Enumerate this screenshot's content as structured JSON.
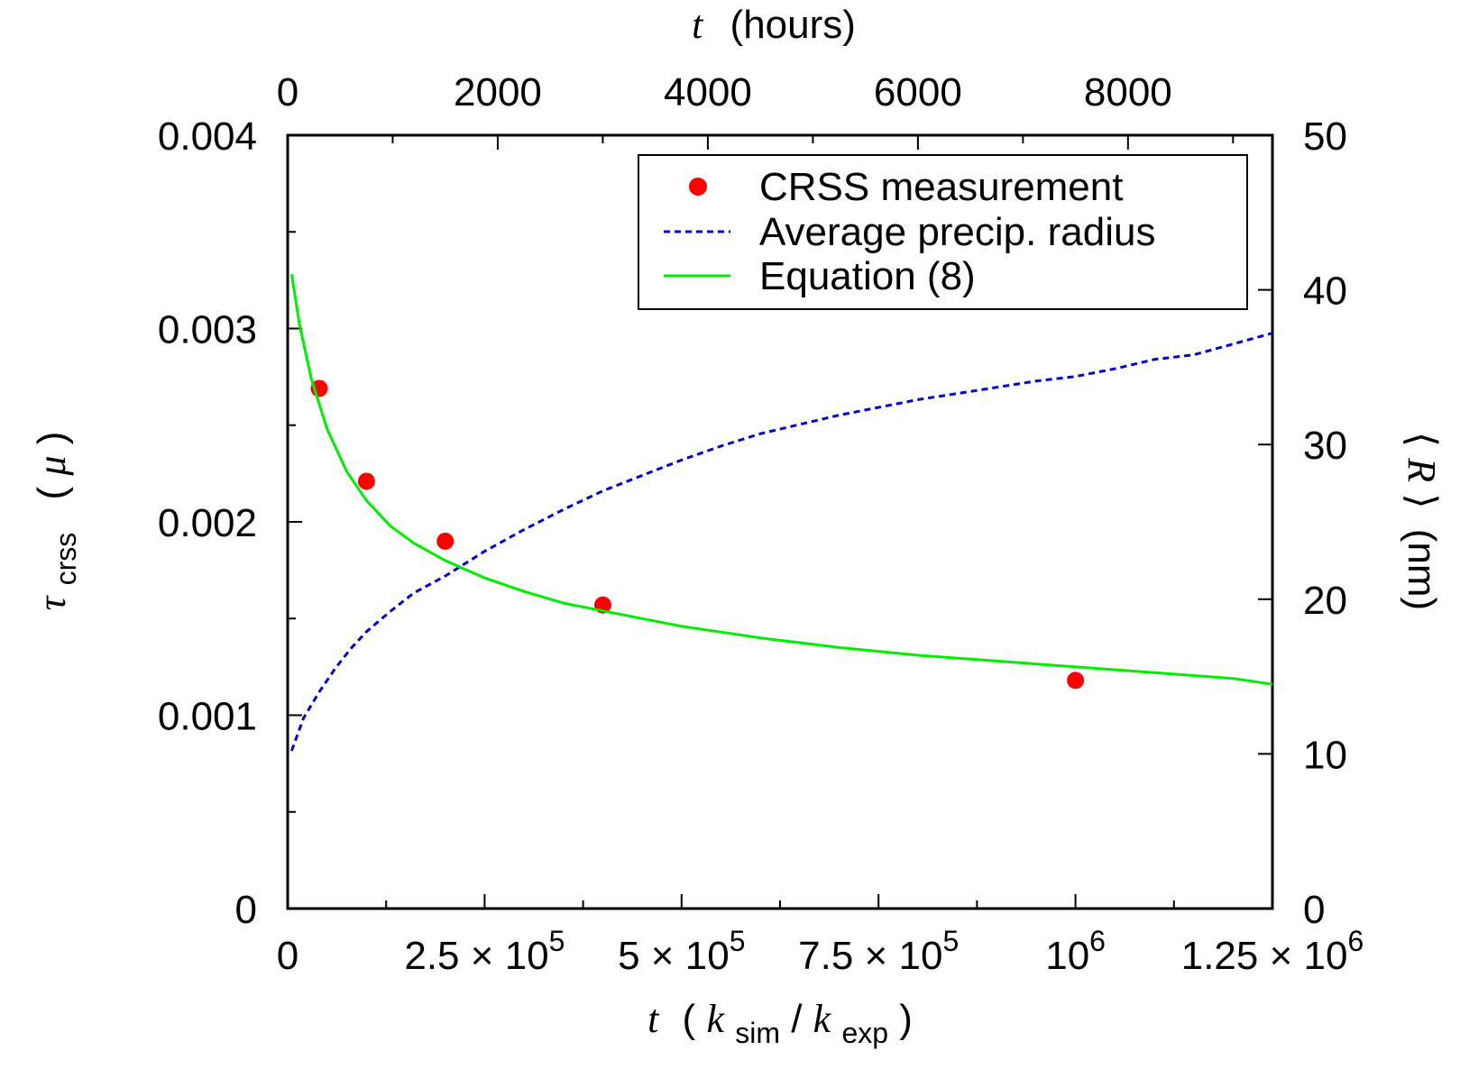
{
  "chart_data": {
    "type": "line",
    "x": {
      "label_var": "t",
      "label_unit_open": "(",
      "label_k1": "k",
      "label_sub1": "sim",
      "label_slash": "/",
      "label_k2": "k",
      "label_sub2": "exp",
      "label_unit_close": ")",
      "range": [
        0,
        1250000
      ],
      "ticks": [
        0,
        250000,
        500000,
        750000,
        1000000,
        1250000
      ],
      "tick_labels": [
        {
          "mant": "0",
          "times": "",
          "base": "",
          "exp": ""
        },
        {
          "mant": "2.5",
          "times": "×",
          "base": "10",
          "exp": "5"
        },
        {
          "mant": "5",
          "times": "×",
          "base": "10",
          "exp": "5"
        },
        {
          "mant": "7.5",
          "times": "×",
          "base": "10",
          "exp": "5"
        },
        {
          "mant": "",
          "times": "",
          "base": "10",
          "exp": "6"
        },
        {
          "mant": "1.25",
          "times": "×",
          "base": "10",
          "exp": "6"
        }
      ]
    },
    "x2": {
      "label_var": "t",
      "label_unit": "(hours)",
      "range": [
        0,
        9375
      ],
      "ticks": [
        0,
        2000,
        4000,
        6000,
        8000
      ],
      "tick_labels": [
        "0",
        "2000",
        "4000",
        "6000",
        "8000"
      ]
    },
    "y": {
      "label_var": "τ",
      "label_sub": "crss",
      "label_unit_open": "(",
      "label_mu": "μ",
      "label_unit_close": ")",
      "range": [
        0,
        0.004
      ],
      "ticks": [
        0,
        0.001,
        0.002,
        0.003,
        0.004
      ],
      "tick_labels": [
        "0",
        "0.001",
        "0.002",
        "0.003",
        "0.004"
      ]
    },
    "y2": {
      "label_langle": "⟨",
      "label_var": "R",
      "label_rangle": "⟩",
      "label_unit": "(nm)",
      "range": [
        0,
        50
      ],
      "ticks": [
        0,
        10,
        20,
        30,
        40,
        50
      ],
      "tick_labels": [
        "0",
        "10",
        "20",
        "30",
        "40",
        "50"
      ]
    },
    "series": [
      {
        "name": "CRSS measurement",
        "type": "scatter",
        "axis": "y",
        "color": "#ff0000",
        "x": [
          40000,
          100000,
          200000,
          400000,
          1000000
        ],
        "y": [
          0.00269,
          0.00221,
          0.0019,
          0.00157,
          0.00118
        ]
      },
      {
        "name": "Average precip. radius",
        "type": "line",
        "style": "dashed",
        "axis": "y2",
        "color": "#0000cc",
        "x": [
          5000,
          20000,
          40000,
          60000,
          80000,
          100000,
          130000,
          160000,
          200000,
          250000,
          300000,
          350000,
          400000,
          450000,
          500000,
          550000,
          600000,
          650000,
          700000,
          750000,
          800000,
          850000,
          900000,
          950000,
          1000000,
          1050000,
          1100000,
          1150000,
          1200000,
          1250000
        ],
        "y": [
          10.2,
          12.3,
          14.0,
          15.5,
          16.8,
          17.9,
          19.2,
          20.4,
          21.5,
          23.1,
          24.5,
          25.8,
          27.0,
          28.0,
          29.0,
          29.9,
          30.7,
          31.3,
          31.9,
          32.4,
          32.9,
          33.3,
          33.7,
          34.1,
          34.4,
          34.9,
          35.5,
          35.8,
          36.5,
          37.2
        ]
      },
      {
        "name": "Equation (8)",
        "type": "line",
        "style": "solid",
        "axis": "y",
        "color": "#00ee00",
        "x": [
          5000,
          15000,
          30000,
          50000,
          75000,
          100000,
          130000,
          160000,
          200000,
          250000,
          300000,
          350000,
          400000,
          450000,
          500000,
          600000,
          700000,
          800000,
          900000,
          1000000,
          1100000,
          1200000,
          1250000
        ],
        "y": [
          0.00328,
          0.00302,
          0.00274,
          0.00248,
          0.00226,
          0.00211,
          0.00198,
          0.00189,
          0.0018,
          0.00171,
          0.00164,
          0.00158,
          0.00154,
          0.0015,
          0.00146,
          0.0014,
          0.00135,
          0.00131,
          0.00128,
          0.00125,
          0.00122,
          0.00119,
          0.00116
        ]
      }
    ],
    "legend": {
      "placement": "top-right",
      "entries": [
        "CRSS measurement",
        "Average precip. radius",
        "Equation (8)"
      ]
    }
  }
}
